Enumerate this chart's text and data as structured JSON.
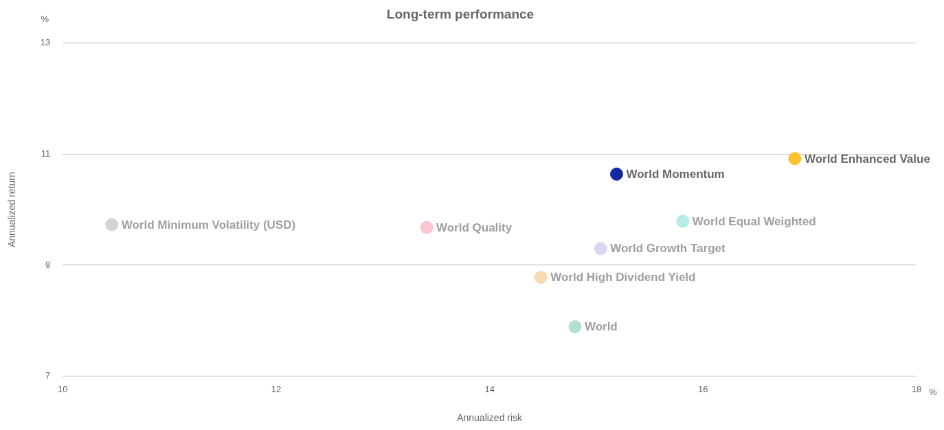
{
  "chart_data": {
    "type": "scatter",
    "title": "Long-term performance",
    "xlabel": "Annualized risk",
    "ylabel": "Annualized return",
    "annotations": [
      "%",
      "%"
    ],
    "series": [
      {
        "name": "World Minimum Volatility (USD)",
        "color": "#d3d3d3",
        "x": [
          10.46
        ],
        "values": [
          9.73
        ]
      },
      {
        "name": "World Quality",
        "color": "#f7c6d0",
        "x": [
          13.41
        ],
        "values": [
          9.68
        ]
      },
      {
        "name": "World High Dividend Yield",
        "color": "#f9d9b2",
        "x": [
          14.48
        ],
        "values": [
          8.78
        ]
      },
      {
        "name": "World",
        "color": "#b3e0cc",
        "x": [
          14.8
        ],
        "values": [
          7.89
        ]
      },
      {
        "name": "World Growth Target",
        "color": "#d7d7f0",
        "x": [
          15.04
        ],
        "values": [
          9.3
        ]
      },
      {
        "name": "World Momentum",
        "color": "#1428a0",
        "x": [
          15.19
        ],
        "values": [
          10.64
        ]
      },
      {
        "name": "World Equal Weighted",
        "color": "#b6ece6",
        "x": [
          15.81
        ],
        "values": [
          9.79
        ]
      },
      {
        "name": "World Enhanced Value",
        "color": "#fdc12e",
        "x": [
          16.86
        ],
        "values": [
          10.92
        ]
      }
    ],
    "xlim": [
      10,
      18
    ],
    "xticks": [
      10,
      12,
      14,
      16,
      18
    ],
    "ylim": [
      7,
      13
    ],
    "yticks": [
      7,
      9,
      11,
      13
    ],
    "grid": "y",
    "legend": false,
    "marker": "circle"
  }
}
